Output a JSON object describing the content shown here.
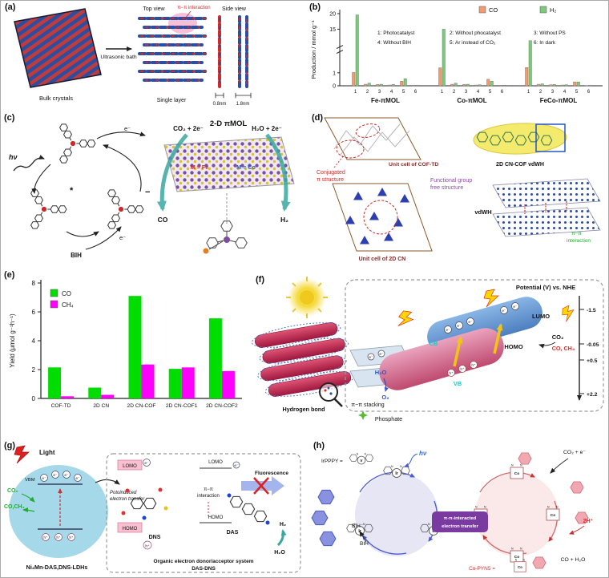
{
  "colors": {
    "co_panel_b": "#f09c72",
    "h2_panel_b": "#7fc97f",
    "co_panel_e": "#00dd00",
    "ch4_panel_e": "#ff00ff",
    "accent_red": "#cc2b2b",
    "accent_blue": "#2b4ea0",
    "accent_teal": "#3aa8a0",
    "accent_green": "#22aa33",
    "accent_purple": "#7a3ba0"
  },
  "panels": {
    "a": {
      "tag": "(a)",
      "bulk_crystals": "Bulk crystals",
      "ultrasonic": "Ultrasonic bath",
      "top_view": "Top view",
      "pi_pi": "π−π interaction",
      "single_layer": "Single layer",
      "side_view": "Side view",
      "d1": "0.8nm",
      "d2": "1.8nm"
    },
    "b": {
      "tag": "(b)"
    },
    "c": {
      "tag": "(c)",
      "hv": "hν",
      "e_top": "e⁻",
      "e_bottom": "e⁻",
      "bih": "BIH",
      "excited": "*",
      "reduced": "−",
      "title": "2-D πMOL",
      "co2": "CO₂ + 2e⁻",
      "h2o": "H₂O + 2e⁻",
      "m_fe": "M = Fe",
      "m_co": "M = Co",
      "co": "CO",
      "h2": "H₂"
    },
    "d": {
      "tag": "(d)",
      "unit_cof": "Unit cell of COF-TD",
      "conj1": "Conjugated",
      "conj2": "π structure",
      "func1": "Functional group",
      "func2": "free structure",
      "unit_cn": "Unit cell of 2D CN",
      "vdwh_full": "2D CN-COF vdWH",
      "vdwh": "vdWH",
      "pipi1": "π−π",
      "pipi2": "interaction"
    },
    "e": {
      "tag": "(e)"
    },
    "f": {
      "tag": "(f)",
      "hydrogen_bond": "Hydrogen bond",
      "pi_stacking": "π−π stacking",
      "phosphate": "Phosphate",
      "potential_title": "Potential (V) vs. NHE",
      "lumo": "LUMO",
      "homo": "HOMO",
      "cb": "CB",
      "vb": "VB",
      "co2": "CO₂",
      "co_ch4": "CO, CH₄",
      "h2o": "H₂O",
      "o2": "O₂",
      "ticks": [
        "-1.5",
        "-0.05",
        "+0.5",
        "+2.2"
      ],
      "e": "e⁻",
      "h": "h⁺"
    },
    "g": {
      "tag": "(g)",
      "light": "Light",
      "co2": "CO₂",
      "co_ch4": "CO,CH₄",
      "vbm": "VBM",
      "e": "e⁻",
      "h": "h⁺",
      "ldh": "Ni₂Mn-DAS,DNS-LDHs",
      "pet1": "Potoinduced",
      "pet2": "electron transfer",
      "lomo": "LOMO",
      "homo": "HOMO",
      "pipi1": "π−π",
      "pipi2": "interaction",
      "dns": "DNS",
      "das": "DAS",
      "fluorescence": "Fluorescence",
      "h2": "H₂",
      "h2o": "H₂O",
      "sys1": "Organic electron donor/acceptor system",
      "sys2": "DAS-DNS"
    },
    "h": {
      "tag": "(h)",
      "irppy": "IrPPPY =",
      "hv": "hν",
      "bih_rad": "BIH⁻",
      "bih": "BIH",
      "pet1": "π-π-interacted",
      "pet2": "electron transfer",
      "co2e": "CO₂ + e⁻",
      "two_h": "2H⁺",
      "co_h2o": "CO + H₂O",
      "co_pyn": "Co-PYN5 =",
      "ir_atom": "Ir",
      "co_atom": "Co",
      "n_atom": "N"
    }
  },
  "chart_data": [
    {
      "id": "panel-b",
      "type": "bar",
      "ylabel": "Production / mmol g⁻¹",
      "ylim": [
        0,
        20
      ],
      "yticks": [
        0,
        1,
        15,
        20
      ],
      "axis_break_between": [
        1,
        14
      ],
      "condition_labels": [
        "1",
        "2",
        "3",
        "4",
        "5",
        "6"
      ],
      "condition_legend": [
        "1: Photocatalyst",
        "2: Without phocatalyst",
        "3: Without PS",
        "4: Without BIH",
        "5: Ar instead of CO₂",
        "6: In dark"
      ],
      "groups": [
        "Fe-πMOL",
        "Co-πMOL",
        "FeCo-πMOL"
      ],
      "series": [
        {
          "name": "CO",
          "color": "#f09c72",
          "values": [
            [
              1.1,
              0.12,
              0.1,
              0.06,
              0.35,
              0.04
            ],
            [
              2.6,
              0.12,
              0.1,
              0.06,
              0.5,
              0.04
            ],
            [
              2.7,
              0.12,
              0.08,
              0.06,
              0.3,
              0.03
            ]
          ]
        },
        {
          "name": "H₂",
          "color": "#7fc97f",
          "values": [
            [
              19.6,
              0.2,
              0.12,
              0.1,
              0.55,
              0.05
            ],
            [
              15.0,
              0.2,
              0.12,
              0.08,
              0.35,
              0.05
            ],
            [
              11.3,
              0.15,
              0.1,
              0.08,
              0.3,
              0.04
            ]
          ]
        }
      ],
      "legend_position": "top",
      "grid": false
    },
    {
      "id": "panel-e",
      "type": "bar",
      "ylabel": "Yield (μmol g⁻¹h⁻¹)",
      "ylim": [
        0,
        8
      ],
      "yticks": [
        0,
        2,
        4,
        6,
        8
      ],
      "categories": [
        "COF-TD",
        "2D CN",
        "2D CN-COF",
        "2D CN-COF1",
        "2D CN-COF2"
      ],
      "series": [
        {
          "name": "CO",
          "color": "#00dd00",
          "values": [
            2.15,
            0.75,
            7.1,
            2.05,
            5.55
          ]
        },
        {
          "name": "CH₄",
          "color": "#ff00ff",
          "values": [
            0.15,
            0.25,
            2.35,
            2.15,
            1.9
          ]
        }
      ],
      "legend_position": "top-left",
      "grid": false
    }
  ]
}
